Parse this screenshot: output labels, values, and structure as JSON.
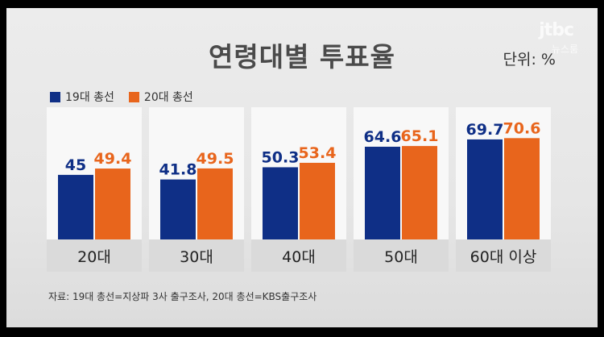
{
  "title": "연령대별 투표율",
  "unit_label": "단위: %",
  "logo": {
    "mark": "jtbc",
    "text": "뉴스룸"
  },
  "source": "자료: 19대 총선=지상파 3사 출구조사, 20대 총선=KBS출구조사",
  "colors": {
    "series_1": "#0f2f86",
    "series_2": "#e8651c",
    "panel_bg": "#f8f8f8",
    "label_band": "#dadada"
  },
  "chart_data": {
    "type": "bar",
    "categories": [
      "20대",
      "30대",
      "40대",
      "50대",
      "60대 이상"
    ],
    "series": [
      {
        "name": "19대 총선",
        "values": [
          45,
          41.8,
          50.3,
          64.6,
          69.7
        ]
      },
      {
        "name": "20대 총선",
        "values": [
          49.4,
          49.5,
          53.4,
          65.1,
          70.6
        ]
      }
    ],
    "value_labels": [
      [
        "45",
        "41.8",
        "50.3",
        "64.6",
        "69.7"
      ],
      [
        "49.4",
        "49.5",
        "53.4",
        "65.1",
        "70.6"
      ]
    ],
    "title": "연령대별 투표율",
    "ylabel": "",
    "xlabel": "",
    "legend_position": "top-left",
    "grid": false
  }
}
